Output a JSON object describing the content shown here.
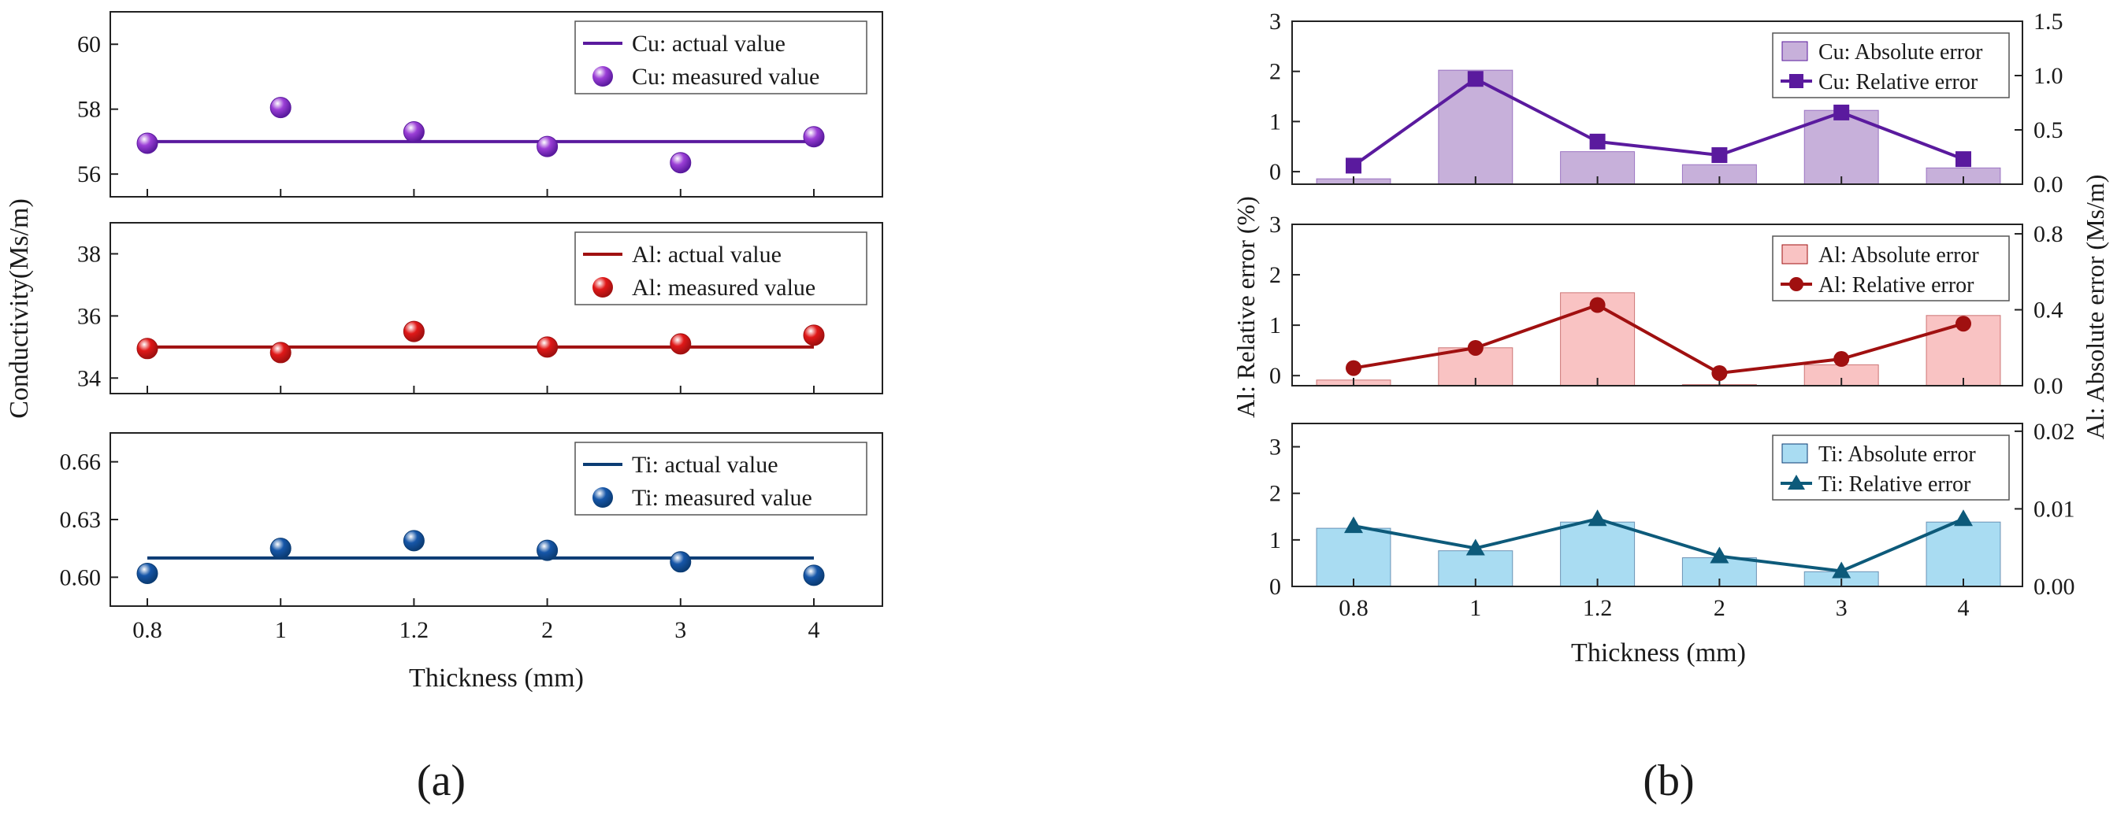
{
  "panel_labels": [
    "(a)",
    "(b)"
  ],
  "colors": {
    "cu": "#5a1a9e",
    "cu_fill": "#c7b0da",
    "cu_point": "#9b3fd6",
    "al": "#a01010",
    "al_fill": "#f9c3c3",
    "al_point": "#e01818",
    "ti": "#0b3c74",
    "ti_fill": "#a9dcf2",
    "ti_point": "#1656a8",
    "ti_line": "#0d5a7a"
  },
  "chart_data": [
    {
      "id": "panel-a",
      "type": "line",
      "categories": [
        "0.8",
        "1",
        "1.2",
        "2",
        "3",
        "4"
      ],
      "xlabel": "Thickness (mm)",
      "ylabel": "Conductivity(Ms/m)",
      "subplots": [
        {
          "metal": "Cu",
          "ylim": [
            55.3,
            61
          ],
          "yticks": [
            "56",
            "58",
            "60"
          ],
          "actual": 57.0,
          "measured": [
            56.95,
            58.05,
            57.3,
            56.85,
            56.35,
            57.15
          ],
          "legend": [
            "Cu: actual value",
            "Cu: measured value"
          ]
        },
        {
          "metal": "Al",
          "ylim": [
            33.5,
            39
          ],
          "yticks": [
            "34",
            "36",
            "38"
          ],
          "actual": 35.0,
          "measured": [
            34.95,
            34.82,
            35.5,
            35.0,
            35.1,
            35.38
          ],
          "legend": [
            "Al: actual value",
            "Al: measured value"
          ]
        },
        {
          "metal": "Ti",
          "ylim": [
            0.585,
            0.675
          ],
          "yticks": [
            "0.60",
            "0.63",
            "0.66"
          ],
          "actual": 0.61,
          "measured": [
            0.602,
            0.615,
            0.619,
            0.614,
            0.608,
            0.601
          ],
          "legend": [
            "Ti: actual value",
            "Ti: measured value"
          ]
        }
      ]
    },
    {
      "id": "panel-b",
      "type": "bar",
      "categories": [
        "0.8",
        "1",
        "1.2",
        "2",
        "3",
        "4"
      ],
      "xlabel": "Thickness (mm)",
      "ylabel_left": "Al: Relative error (%)",
      "ylabel_right": "Al: Absolute error (Ms/m)",
      "subplots": [
        {
          "metal": "Cu",
          "left": {
            "ylim": [
              -0.25,
              3
            ],
            "ticks": [
              "0",
              "1",
              "2",
              "3"
            ],
            "values": [
              0.12,
              1.85,
              0.6,
              0.33,
              1.18,
              0.25
            ]
          },
          "right": {
            "ylim": [
              0.0,
              1.5
            ],
            "ticks": [
              "0.0",
              "0.5",
              "1.0",
              "1.5"
            ],
            "values": [
              0.05,
              1.05,
              0.3,
              0.18,
              0.68,
              0.15
            ]
          },
          "legend": [
            "Cu: Absolute error",
            "Cu: Relative error"
          ]
        },
        {
          "metal": "Al",
          "left": {
            "ylim": [
              -0.2,
              3
            ],
            "ticks": [
              "0",
              "1",
              "2",
              "3"
            ],
            "values": [
              0.15,
              0.55,
              1.4,
              0.05,
              0.33,
              1.03
            ]
          },
          "right": {
            "ylim": [
              0.0,
              0.85
            ],
            "ticks": [
              "0.0",
              "0.4",
              "0.8"
            ],
            "values": [
              0.03,
              0.2,
              0.49,
              0.006,
              0.11,
              0.37
            ]
          },
          "legend": [
            "Al: Absolute error",
            "Al: Relative error"
          ]
        },
        {
          "metal": "Ti",
          "left": {
            "ylim": [
              0,
              3.5
            ],
            "ticks": [
              "0",
              "1",
              "2",
              "3"
            ],
            "values": [
              1.3,
              0.82,
              1.45,
              0.65,
              0.33,
              1.45
            ]
          },
          "right": {
            "ylim": [
              0.0,
              0.021
            ],
            "ticks": [
              "0.00",
              "0.01",
              "0.02"
            ],
            "values": [
              0.0075,
              0.0046,
              0.0083,
              0.0037,
              0.0019,
              0.0083
            ]
          },
          "legend": [
            "Ti: Absolute error",
            "Ti: Relative error"
          ]
        }
      ]
    }
  ]
}
